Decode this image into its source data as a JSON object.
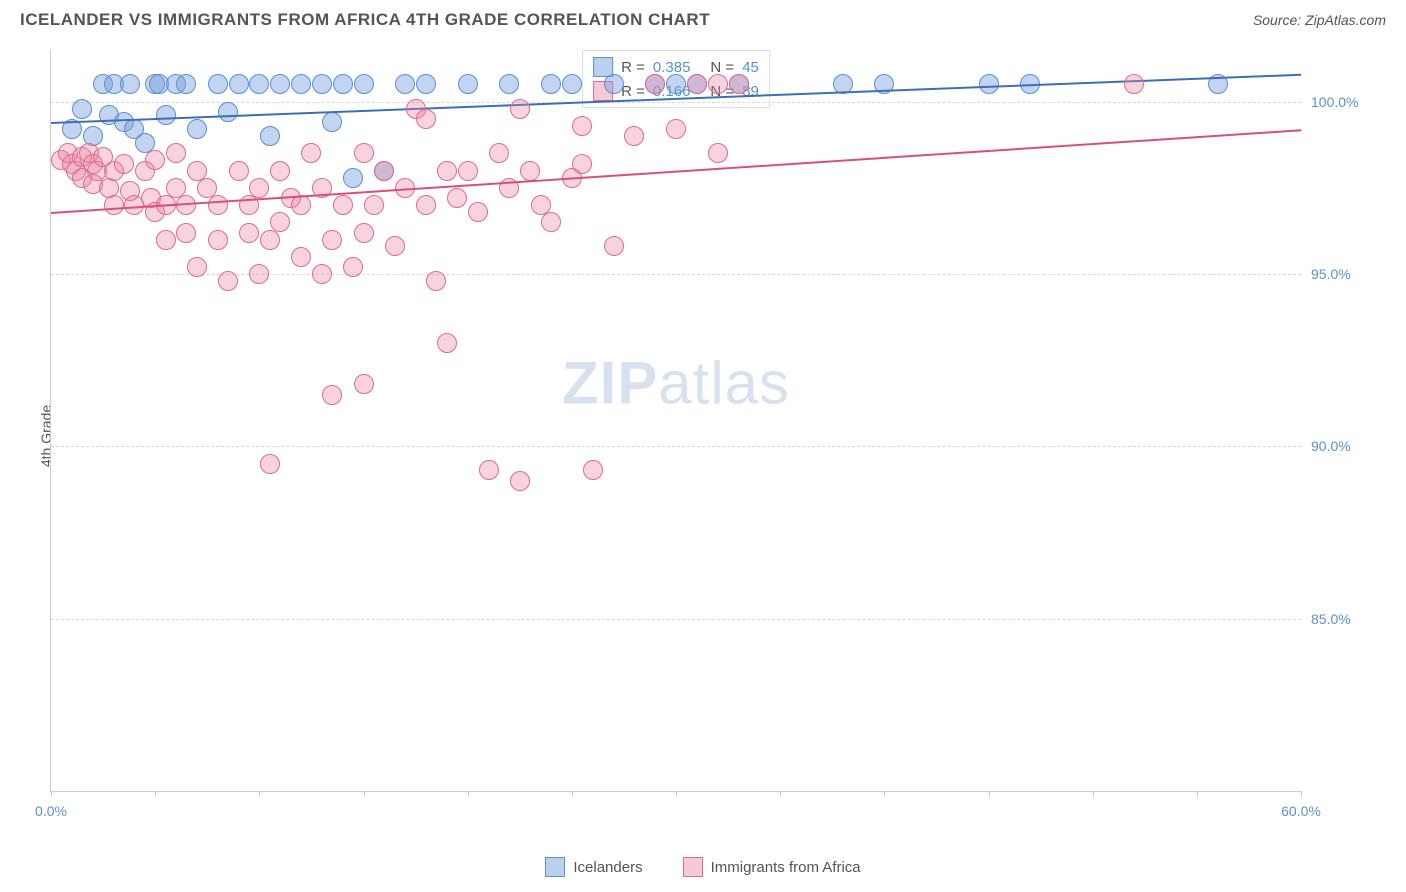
{
  "title": "ICELANDER VS IMMIGRANTS FROM AFRICA 4TH GRADE CORRELATION CHART",
  "source": "Source: ZipAtlas.com",
  "ylabel": "4th Grade",
  "watermark_zip": "ZIP",
  "watermark_atlas": "atlas",
  "chart": {
    "xlim": [
      0,
      60
    ],
    "ylim": [
      80,
      101.5
    ],
    "x_ticks": [
      0,
      5,
      10,
      15,
      20,
      25,
      30,
      35,
      40,
      45,
      50,
      55,
      60
    ],
    "x_tick_labels": {
      "0": "0.0%",
      "60": "60.0%"
    },
    "y_gridlines": [
      85,
      90,
      95,
      100
    ],
    "y_tick_labels": {
      "85": "85.0%",
      "90": "90.0%",
      "95": "95.0%",
      "100": "100.0%"
    },
    "grid_color": "#d8d8d8",
    "background_color": "#ffffff",
    "series": [
      {
        "name": "Icelanders",
        "color_fill": "rgba(120,160,220,0.45)",
        "color_stroke": "#5b8fd6",
        "swatch_fill": "#b9d0ee",
        "swatch_border": "#5b8fd6",
        "marker_radius": 9,
        "R": "0.385",
        "N": "45",
        "trend": {
          "x1": 0,
          "y1": 99.4,
          "x2": 60,
          "y2": 100.8,
          "color": "#3d6fb5",
          "width": 2
        },
        "points": [
          [
            1,
            99.2
          ],
          [
            1.5,
            99.8
          ],
          [
            2,
            99.0
          ],
          [
            2.5,
            100.5
          ],
          [
            2.8,
            99.6
          ],
          [
            3,
            100.5
          ],
          [
            3.5,
            99.4
          ],
          [
            3.8,
            100.5
          ],
          [
            4,
            99.2
          ],
          [
            4.5,
            98.8
          ],
          [
            5,
            100.5
          ],
          [
            5.5,
            99.6
          ],
          [
            5.2,
            100.5
          ],
          [
            6,
            100.5
          ],
          [
            6.5,
            100.5
          ],
          [
            7,
            99.2
          ],
          [
            8,
            100.5
          ],
          [
            8.5,
            99.7
          ],
          [
            9,
            100.5
          ],
          [
            10,
            100.5
          ],
          [
            10.5,
            99.0
          ],
          [
            11,
            100.5
          ],
          [
            12,
            100.5
          ],
          [
            13,
            100.5
          ],
          [
            13.5,
            99.4
          ],
          [
            14,
            100.5
          ],
          [
            14.5,
            97.8
          ],
          [
            15,
            100.5
          ],
          [
            16,
            98.0
          ],
          [
            17,
            100.5
          ],
          [
            18,
            100.5
          ],
          [
            20,
            100.5
          ],
          [
            22,
            100.5
          ],
          [
            24,
            100.5
          ],
          [
            25,
            100.5
          ],
          [
            27,
            100.5
          ],
          [
            29,
            100.5
          ],
          [
            30,
            100.5
          ],
          [
            31,
            100.5
          ],
          [
            33,
            100.5
          ],
          [
            38,
            100.5
          ],
          [
            40,
            100.5
          ],
          [
            45,
            100.5
          ],
          [
            47,
            100.5
          ],
          [
            56,
            100.5
          ]
        ]
      },
      {
        "name": "Immigrants from Africa",
        "color_fill": "rgba(235,130,160,0.35)",
        "color_stroke": "#e06b8f",
        "swatch_fill": "#f6c9d6",
        "swatch_border": "#e06b8f",
        "marker_radius": 9,
        "R": "0.166",
        "N": "89",
        "trend": {
          "x1": 0,
          "y1": 96.8,
          "x2": 60,
          "y2": 99.2,
          "color": "#d94f7a",
          "width": 2
        },
        "points": [
          [
            0.5,
            98.3
          ],
          [
            0.8,
            98.5
          ],
          [
            1,
            98.2
          ],
          [
            1.2,
            98.0
          ],
          [
            1.5,
            98.4
          ],
          [
            1.5,
            97.8
          ],
          [
            1.8,
            98.5
          ],
          [
            2,
            98.2
          ],
          [
            2,
            97.6
          ],
          [
            2.2,
            98.0
          ],
          [
            2.5,
            98.4
          ],
          [
            2.8,
            97.5
          ],
          [
            3,
            98.0
          ],
          [
            3,
            97.0
          ],
          [
            3.5,
            98.2
          ],
          [
            3.8,
            97.4
          ],
          [
            4,
            97.0
          ],
          [
            4.5,
            98.0
          ],
          [
            4.8,
            97.2
          ],
          [
            5,
            98.3
          ],
          [
            5,
            96.8
          ],
          [
            5.5,
            97.0
          ],
          [
            5.5,
            96.0
          ],
          [
            6,
            98.5
          ],
          [
            6,
            97.5
          ],
          [
            6.5,
            97.0
          ],
          [
            6.5,
            96.2
          ],
          [
            7,
            98.0
          ],
          [
            7,
            95.2
          ],
          [
            7.5,
            97.5
          ],
          [
            8,
            97.0
          ],
          [
            8,
            96.0
          ],
          [
            8.5,
            94.8
          ],
          [
            9,
            98.0
          ],
          [
            9.5,
            97.0
          ],
          [
            9.5,
            96.2
          ],
          [
            10,
            97.5
          ],
          [
            10,
            95.0
          ],
          [
            10.5,
            96.0
          ],
          [
            10.5,
            89.5
          ],
          [
            11,
            98.0
          ],
          [
            11,
            96.5
          ],
          [
            11.5,
            97.2
          ],
          [
            12,
            95.5
          ],
          [
            12,
            97.0
          ],
          [
            12.5,
            98.5
          ],
          [
            13,
            95.0
          ],
          [
            13,
            97.5
          ],
          [
            13.5,
            96.0
          ],
          [
            13.5,
            91.5
          ],
          [
            14,
            97.0
          ],
          [
            14.5,
            95.2
          ],
          [
            15,
            98.5
          ],
          [
            15,
            96.2
          ],
          [
            15,
            91.8
          ],
          [
            15.5,
            97.0
          ],
          [
            16,
            98.0
          ],
          [
            16.5,
            95.8
          ],
          [
            17,
            97.5
          ],
          [
            17.5,
            99.8
          ],
          [
            18,
            97.0
          ],
          [
            18,
            99.5
          ],
          [
            18.5,
            94.8
          ],
          [
            19,
            98.0
          ],
          [
            19,
            93.0
          ],
          [
            19.5,
            97.2
          ],
          [
            20,
            98.0
          ],
          [
            20.5,
            96.8
          ],
          [
            21,
            89.3
          ],
          [
            21.5,
            98.5
          ],
          [
            22,
            97.5
          ],
          [
            22.5,
            89.0
          ],
          [
            22.5,
            99.8
          ],
          [
            23,
            98.0
          ],
          [
            23.5,
            97.0
          ],
          [
            24,
            96.5
          ],
          [
            25,
            97.8
          ],
          [
            25.5,
            98.2
          ],
          [
            25.5,
            99.3
          ],
          [
            26,
            89.3
          ],
          [
            27,
            95.8
          ],
          [
            28,
            99.0
          ],
          [
            29,
            100.5
          ],
          [
            30,
            99.2
          ],
          [
            31,
            100.5
          ],
          [
            32,
            98.5
          ],
          [
            32,
            100.5
          ],
          [
            33,
            100.5
          ],
          [
            52,
            100.5
          ]
        ]
      }
    ]
  },
  "legend_r_label": "R =",
  "legend_n_label": "N ="
}
